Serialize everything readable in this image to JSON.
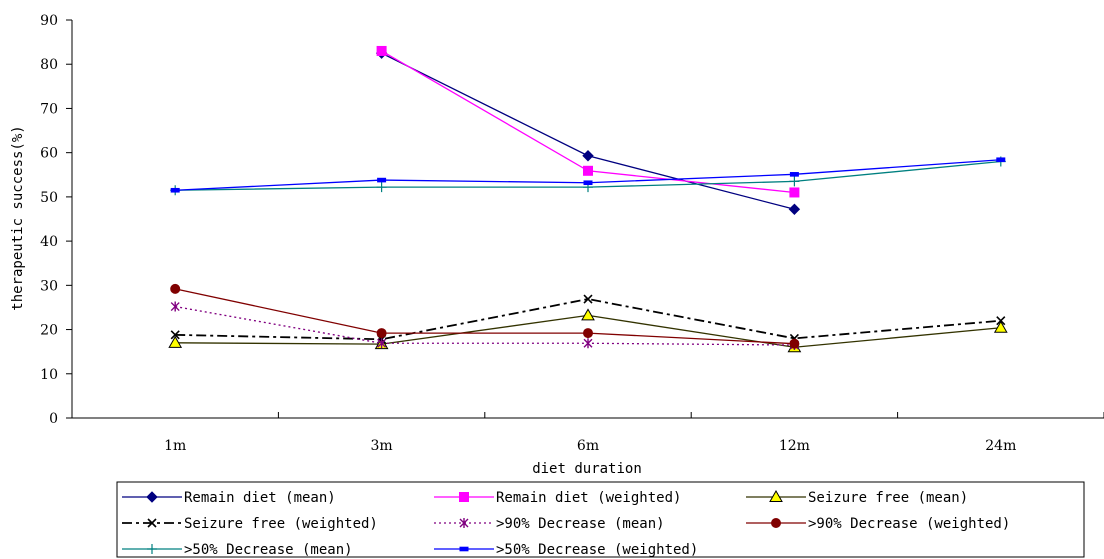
{
  "chart_data": {
    "type": "line",
    "title": "",
    "xlabel": "diet duration",
    "ylabel": "therapeutic success(%)",
    "categories": [
      "1m",
      "3m",
      "6m",
      "12m",
      "24m"
    ],
    "ylim": [
      0,
      90
    ],
    "yticks": [
      0,
      10,
      20,
      30,
      40,
      50,
      60,
      70,
      80,
      90
    ],
    "grid": false,
    "legend_position": "bottom",
    "series": [
      {
        "name": "Remain diet (mean)",
        "values": [
          null,
          82.5,
          59.3,
          47.2,
          null
        ],
        "color": "#000080",
        "marker": "diamond",
        "dash": "solid"
      },
      {
        "name": "Remain diet (weighted)",
        "values": [
          null,
          83.0,
          55.9,
          51.0,
          null
        ],
        "color": "#FF00FF",
        "marker": "square",
        "dash": "solid"
      },
      {
        "name": "Seizure free (mean)",
        "values": [
          17.0,
          16.7,
          23.2,
          16.0,
          20.4
        ],
        "color": "#333300",
        "marker": "triangle",
        "dash": "solid"
      },
      {
        "name": "Seizure free (weighted)",
        "values": [
          18.8,
          17.8,
          26.9,
          18.0,
          22.0
        ],
        "color": "#000000",
        "marker": "x",
        "dash": "dashdot"
      },
      {
        "name": ">90% Decrease (mean)",
        "values": [
          25.2,
          16.9,
          16.9,
          16.5,
          null
        ],
        "color": "#800080",
        "marker": "star",
        "dash": "dotted"
      },
      {
        "name": ">90% Decrease (weighted)",
        "values": [
          29.2,
          19.2,
          19.2,
          16.8,
          null
        ],
        "color": "#800000",
        "marker": "circle",
        "dash": "solid"
      },
      {
        "name": ">50% Decrease (mean)",
        "values": [
          51.5,
          52.2,
          52.2,
          53.5,
          58.0
        ],
        "color": "#008080",
        "marker": "plus",
        "dash": "solid"
      },
      {
        "name": ">50% Decrease (weighted)",
        "values": [
          51.5,
          53.8,
          53.2,
          55.1,
          58.4
        ],
        "color": "#0000FF",
        "marker": "dash",
        "dash": "solid"
      }
    ]
  }
}
